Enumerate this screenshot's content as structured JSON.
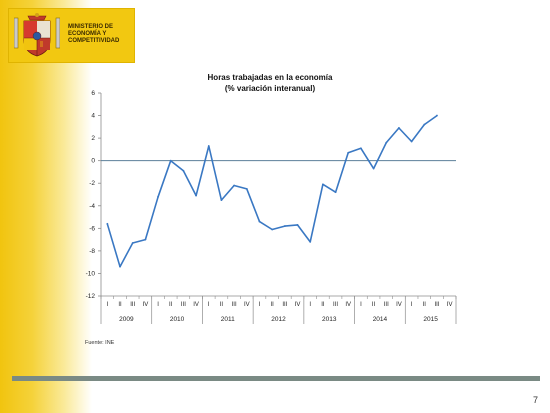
{
  "ministry": {
    "line1": "MINISTERIO DE",
    "line2": "ECONOMÍA Y",
    "line3": "COMPETITIVIDAD"
  },
  "chart_data": {
    "type": "line",
    "title": "Horas trabajadas en la economía",
    "subtitle": "(% variación interanual)",
    "categories": [
      "I",
      "II",
      "III",
      "IV",
      "I",
      "II",
      "III",
      "IV",
      "I",
      "II",
      "III",
      "IV",
      "I",
      "II",
      "III",
      "IV",
      "I",
      "II",
      "III",
      "IV",
      "I",
      "II",
      "III",
      "IV",
      "I",
      "II",
      "III",
      "IV"
    ],
    "year_groups": [
      "2009",
      "2010",
      "2011",
      "2012",
      "2013",
      "2014",
      "2015"
    ],
    "series": [
      {
        "color": "#3a78c3",
        "values": [
          -5.6,
          -9.4,
          -7.3,
          -7.0,
          -3.2,
          0.0,
          -0.9,
          -3.1,
          1.3,
          -3.5,
          -2.2,
          -2.5,
          -5.4,
          -6.1,
          -5.8,
          -5.7,
          -7.2,
          -2.1,
          -2.8,
          0.7,
          1.1,
          -0.7,
          1.6,
          2.9,
          1.7,
          3.2,
          4.0,
          null
        ]
      }
    ],
    "ylim": [
      -12,
      6
    ],
    "yticks": [
      "6",
      "4",
      "2",
      "0",
      "-2",
      "-4",
      "-6",
      "-8",
      "-10",
      "-12"
    ],
    "xlabel": "",
    "ylabel": "",
    "grid": false
  },
  "source_text": "Fuente: INE",
  "page_number": "7",
  "colors": {
    "brand_yellow": "#f2c811",
    "series_line": "#3a78c3",
    "zero_line": "#5b7f99",
    "footer_bar": "#7a8a84"
  }
}
